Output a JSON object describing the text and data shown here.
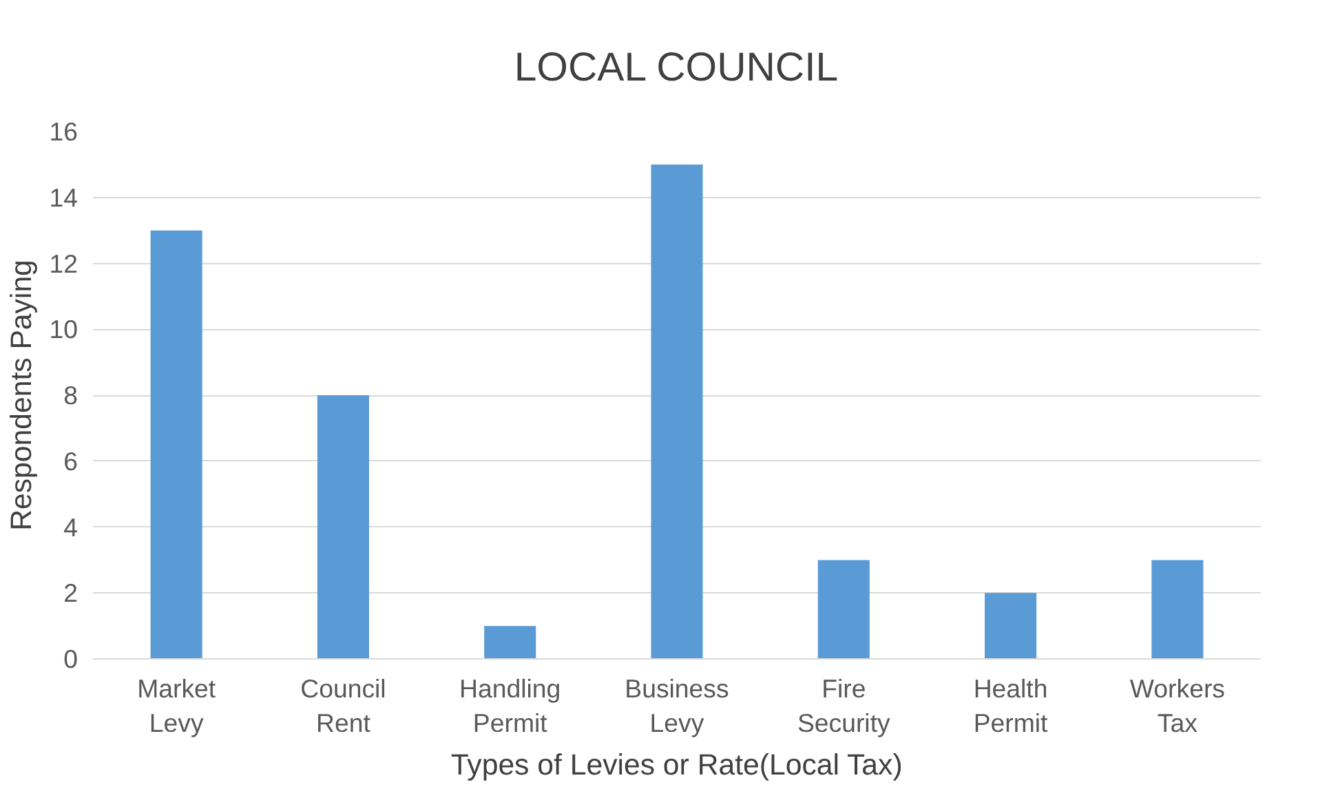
{
  "chart_data": {
    "type": "bar",
    "title": "LOCAL COUNCIL",
    "xlabel": "Types of Levies or Rate(Local Tax)",
    "ylabel": "Respondents Paying",
    "categories": [
      "Market\nLevy",
      "Council\nRent",
      "Handling\nPermit",
      "Business\nLevy",
      "Fire\nSecurity",
      "Health\nPermit",
      "Workers\nTax"
    ],
    "values": [
      13,
      8,
      1,
      15,
      3,
      2,
      3
    ],
    "color": "#5b9bd5",
    "ylim": [
      0,
      16
    ],
    "yticks": [
      0,
      2,
      4,
      6,
      8,
      10,
      12,
      14,
      16
    ],
    "grid": "y"
  }
}
